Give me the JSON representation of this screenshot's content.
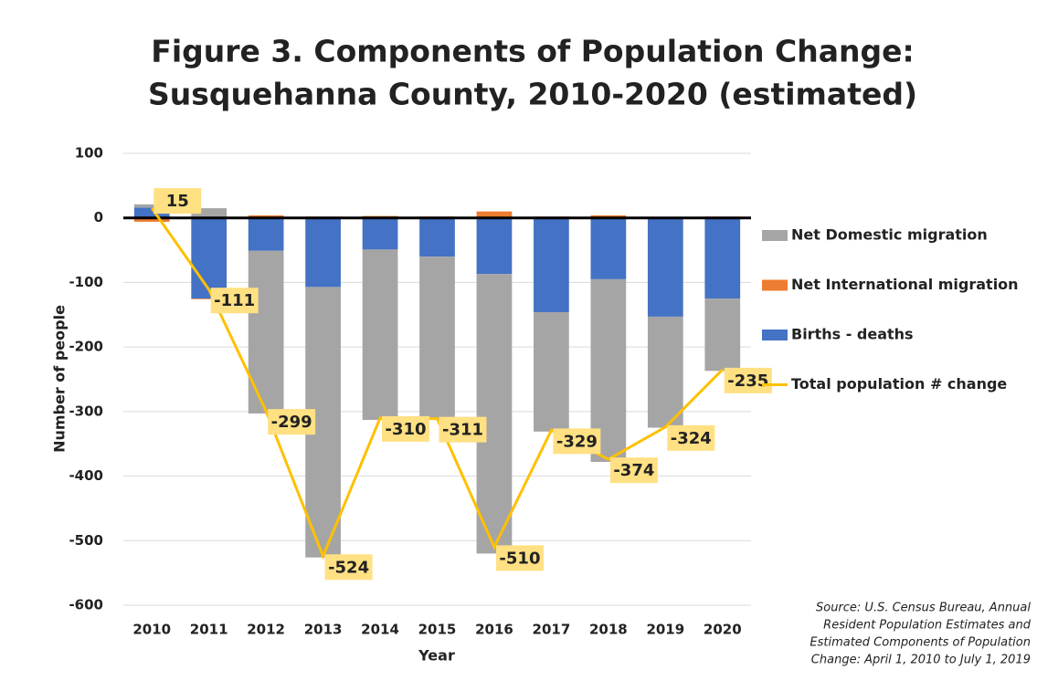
{
  "chart_data": {
    "type": "bar",
    "stacked": true,
    "title": [
      "Figure 3. Components of Population Change:",
      "Susquehanna County, 2010-2020 (estimated)"
    ],
    "xlabel": "Year",
    "ylabel": "Number of people",
    "categories": [
      "2010",
      "2011",
      "2012",
      "2013",
      "2014",
      "2015",
      "2016",
      "2017",
      "2018",
      "2019",
      "2020"
    ],
    "series": [
      {
        "name": "Net Domestic migration",
        "color": "#a5a5a5",
        "values": [
          5,
          15,
          -252,
          -419,
          -264,
          -253,
          -433,
          -185,
          -283,
          -172,
          -112
        ]
      },
      {
        "name": "Net International migration",
        "color": "#ed7d31",
        "values": [
          -6,
          -1,
          4,
          2,
          3,
          2,
          10,
          2,
          4,
          1,
          2
        ]
      },
      {
        "name": "Births - deaths",
        "color": "#4472c4",
        "values": [
          16,
          -125,
          -51,
          -107,
          -49,
          -60,
          -87,
          -146,
          -95,
          -153,
          -125
        ]
      },
      {
        "name": "Total population # change",
        "color": "#ffc000",
        "type": "line",
        "values": [
          15,
          -111,
          -299,
          -524,
          -310,
          -311,
          -510,
          -329,
          -374,
          -324,
          -235
        ]
      }
    ],
    "ylim": [
      -600,
      100
    ],
    "yticks": [
      -600,
      -500,
      -400,
      -300,
      -200,
      -100,
      0,
      100
    ],
    "legend": "right",
    "source": [
      "Source: U.S. Census Bureau, Annual",
      "Resident Population Estimates and",
      "Estimated Components of Population",
      "Change: April 1, 2010 to July 1, 2019"
    ]
  }
}
